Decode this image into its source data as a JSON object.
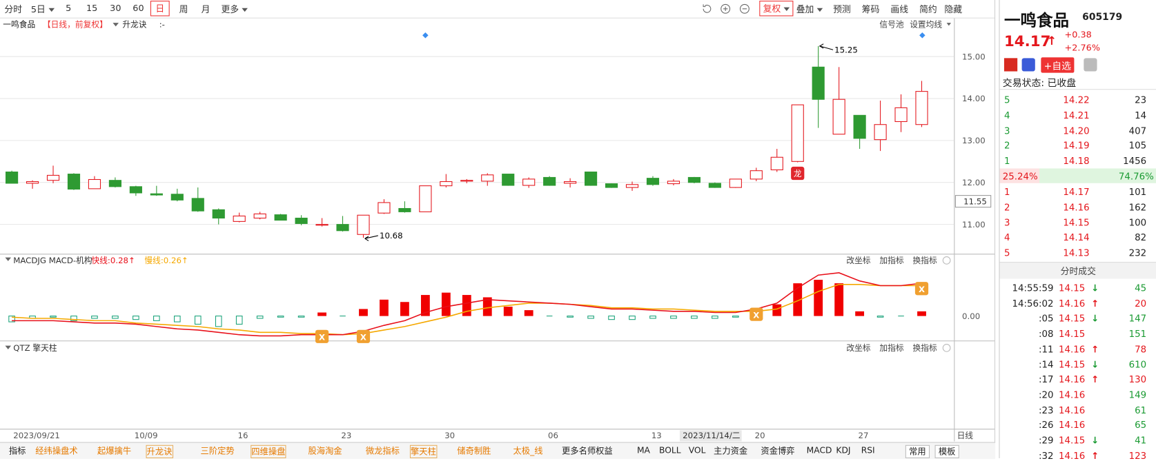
{
  "toolbar": {
    "left": [
      "分时",
      "5日",
      "5",
      "15",
      "30",
      "60",
      "日",
      "周",
      "月",
      "更多"
    ],
    "right": [
      "复权",
      "叠加",
      "预测",
      "筹码",
      "画线",
      "简约",
      "隐藏"
    ]
  },
  "header": {
    "stock_name": "一鸣食品",
    "period_tag": "【日线，前复权】",
    "indicator": "升龙诀",
    "indicator_value": ":-",
    "signal_pool": "信号池",
    "ma_setting": "设置均线"
  },
  "macd_header": {
    "name": "MACDJG MACD-机构",
    "fast": "快线:0.28↑",
    "slow": "慢线:0.26↑",
    "actions": [
      "改坐标",
      "加指标",
      "换指标"
    ]
  },
  "qtz_header": {
    "name": "QTZ 擎天柱",
    "actions": [
      "改坐标",
      "加指标",
      "换指标"
    ]
  },
  "chart_data": [
    {
      "type": "candlestick",
      "categories": [
        "2023/09/21",
        null,
        null,
        null,
        null,
        null,
        "10/09",
        null,
        null,
        null,
        null,
        "16",
        null,
        null,
        null,
        null,
        "23",
        null,
        null,
        null,
        null,
        "30",
        null,
        null,
        null,
        null,
        "06",
        null,
        null,
        null,
        null,
        "13",
        null,
        null,
        null,
        null,
        "20",
        null,
        null,
        null,
        null,
        "27",
        null,
        null,
        null
      ],
      "x_unit": "日线",
      "open": [
        12.25,
        11.98,
        12.05,
        12.2,
        11.85,
        12.05,
        11.9,
        11.73,
        11.72,
        11.62,
        11.35,
        11.07,
        11.15,
        11.23,
        11.15,
        10.98,
        11.0,
        10.76,
        11.27,
        11.38,
        11.3,
        11.92,
        12.03,
        12.03,
        12.2,
        11.93,
        12.12,
        11.98,
        12.25,
        11.97,
        11.88,
        12.1,
        11.97,
        12.12,
        11.98,
        11.88,
        12.08,
        12.3,
        12.5,
        14.75,
        13.15,
        13.6,
        13.02,
        13.45,
        13.38
      ],
      "high": [
        12.28,
        12.05,
        12.4,
        12.22,
        12.15,
        12.12,
        11.92,
        11.92,
        11.85,
        11.88,
        11.38,
        11.28,
        11.3,
        11.25,
        11.22,
        11.15,
        11.2,
        11.22,
        11.6,
        11.55,
        11.92,
        12.2,
        12.08,
        12.22,
        12.2,
        12.12,
        12.15,
        12.1,
        12.25,
        11.98,
        12.02,
        12.15,
        12.08,
        12.13,
        12.0,
        12.08,
        12.35,
        12.8,
        13.85,
        15.25,
        14.75,
        13.6,
        13.95,
        14.1,
        14.42
      ],
      "low": [
        11.98,
        11.85,
        11.98,
        11.82,
        11.85,
        11.88,
        11.68,
        11.68,
        11.55,
        11.3,
        11.0,
        11.05,
        11.12,
        11.1,
        10.98,
        10.95,
        10.83,
        10.68,
        11.25,
        11.28,
        11.3,
        11.88,
        11.98,
        11.92,
        11.92,
        11.87,
        11.92,
        11.88,
        11.92,
        11.87,
        11.8,
        11.92,
        11.93,
        11.98,
        11.87,
        11.87,
        12.03,
        12.25,
        12.48,
        13.3,
        13.15,
        12.8,
        12.75,
        13.2,
        13.32
      ],
      "close": [
        11.98,
        12.02,
        12.17,
        11.84,
        12.07,
        11.9,
        11.75,
        11.7,
        11.58,
        11.32,
        11.15,
        11.2,
        11.25,
        11.1,
        11.02,
        11.0,
        10.85,
        11.22,
        11.52,
        11.3,
        11.92,
        12.02,
        12.05,
        12.18,
        11.93,
        12.08,
        11.93,
        12.02,
        11.93,
        11.88,
        11.95,
        11.95,
        12.03,
        12.0,
        11.88,
        12.08,
        12.28,
        12.6,
        13.85,
        13.98,
        13.98,
        13.05,
        13.38,
        13.78,
        14.17
      ],
      "up_color": "#e4161c",
      "down_color": "#2e9a32",
      "ylim": [
        10.3,
        15.91
      ],
      "yticks": [
        {
          "value": 11,
          "label": "11.00"
        },
        {
          "value": 12,
          "label": "12.00"
        },
        {
          "value": 13,
          "label": "13.00"
        },
        {
          "value": 14,
          "label": "14.00"
        },
        {
          "value": 15,
          "label": "15.00"
        }
      ],
      "grid": true,
      "crosshair": {
        "label": "2023/11/14/二",
        "price": {
          "value": 11.55,
          "label": "11.55"
        }
      },
      "dragon_signal": 38,
      "dragon_icon": "龙"
    },
    {
      "type": "macd",
      "histogram": [
        -0.05,
        -0.02,
        -0.01,
        -0.04,
        -0.02,
        -0.02,
        -0.03,
        -0.04,
        -0.05,
        -0.07,
        -0.09,
        -0.07,
        -0.02,
        -0.01,
        -0.01,
        0.03,
        0,
        0.06,
        0.14,
        0.12,
        0.18,
        0.2,
        0.18,
        0.16,
        0.08,
        0.05,
        0,
        -0.01,
        -0.02,
        -0.03,
        -0.03,
        -0.02,
        -0.02,
        -0.02,
        -0.02,
        -0.01,
        -0.01,
        0.1,
        0.28,
        0.31,
        0.28,
        0.04,
        -0.01,
        0,
        0.04
      ],
      "fast": [
        -0.04,
        -0.04,
        -0.04,
        -0.05,
        -0.06,
        -0.06,
        -0.07,
        -0.09,
        -0.11,
        -0.12,
        -0.14,
        -0.16,
        -0.17,
        -0.17,
        -0.16,
        -0.16,
        -0.16,
        -0.13,
        -0.08,
        -0.04,
        0.03,
        0.08,
        0.11,
        0.14,
        0.13,
        0.12,
        0.11,
        0.1,
        0.08,
        0.06,
        0.06,
        0.05,
        0.04,
        0.04,
        0.03,
        0.03,
        0.06,
        0.11,
        0.24,
        0.35,
        0.37,
        0.3,
        0.26,
        0.26,
        0.28
      ],
      "slow": [
        -0.01,
        -0.02,
        -0.02,
        -0.03,
        -0.04,
        -0.04,
        -0.06,
        -0.07,
        -0.08,
        -0.09,
        -0.11,
        -0.12,
        -0.14,
        -0.14,
        -0.15,
        -0.15,
        -0.16,
        -0.15,
        -0.12,
        -0.09,
        -0.05,
        -0.01,
        0.04,
        0.07,
        0.09,
        0.11,
        0.11,
        0.1,
        0.09,
        0.07,
        0.07,
        0.06,
        0.06,
        0.05,
        0.04,
        0.04,
        0.04,
        0.06,
        0.13,
        0.21,
        0.27,
        0.27,
        0.26,
        0.26,
        0.26
      ],
      "fast_color": "#e8101a",
      "slow_color": "#f5a800",
      "up_color": "#f00000",
      "down_color": "#1aa37a",
      "ylim": [
        -0.21,
        0.52
      ],
      "yticks": [
        {
          "value": 0,
          "label": "0.00"
        }
      ],
      "cross_signals": [
        15,
        17,
        36,
        44
      ],
      "signal_icon": "X"
    }
  ],
  "quote": {
    "name": "一鸣食品",
    "code": "605179",
    "price": 14.17,
    "arrow": "↑",
    "change": "+0.38",
    "change_pct": "+2.76%",
    "watch": "+自选",
    "status": "交易状态: 已收盘"
  },
  "order_book": {
    "asks": [
      [
        "5",
        "14.22",
        "23"
      ],
      [
        "4",
        "14.21",
        "14"
      ],
      [
        "3",
        "14.20",
        "407"
      ],
      [
        "2",
        "14.19",
        "105"
      ],
      [
        "1",
        "14.18",
        "1456"
      ]
    ],
    "ratio": [
      "25.24%",
      "74.76%"
    ],
    "bids": [
      [
        "1",
        "14.17",
        "101"
      ],
      [
        "2",
        "14.16",
        "162"
      ],
      [
        "3",
        "14.15",
        "100"
      ],
      [
        "4",
        "14.14",
        "82"
      ],
      [
        "5",
        "14.13",
        "232"
      ]
    ]
  },
  "trades": {
    "title": "分时成交",
    "rows": [
      [
        "14:55:59",
        "14.15",
        "↓",
        "45"
      ],
      [
        "14:56:02",
        "14.16",
        "↑",
        "20"
      ],
      [
        ":05",
        "14.15",
        "↓",
        "147"
      ],
      [
        ":08",
        "14.15",
        null,
        "151"
      ],
      [
        ":11",
        "14.16",
        "↑",
        "78"
      ],
      [
        ":14",
        "14.15",
        "↓",
        "610"
      ],
      [
        ":17",
        "14.16",
        "↑",
        "130"
      ],
      [
        ":20",
        "14.16",
        null,
        "149"
      ],
      [
        ":23",
        "14.16",
        null,
        "61"
      ],
      [
        ":26",
        "14.16",
        null,
        "65"
      ],
      [
        ":29",
        "14.15",
        "↓",
        "41"
      ],
      [
        ":32",
        "14.16",
        "↑",
        "123"
      ]
    ]
  },
  "tabs": [
    "指标",
    "经纬操盘术",
    "起爆擒牛",
    "升龙诀",
    "三阶定势",
    "四维操盘",
    "股海淘金",
    "微龙指标",
    "擎天柱",
    "储奇制胜",
    "太极_线",
    "更多名师权益",
    "MA",
    "BOLL",
    "VOL",
    "主力资金",
    "资金博弈",
    "MACD",
    "KDJ",
    "RSI",
    "常用",
    "模板"
  ]
}
